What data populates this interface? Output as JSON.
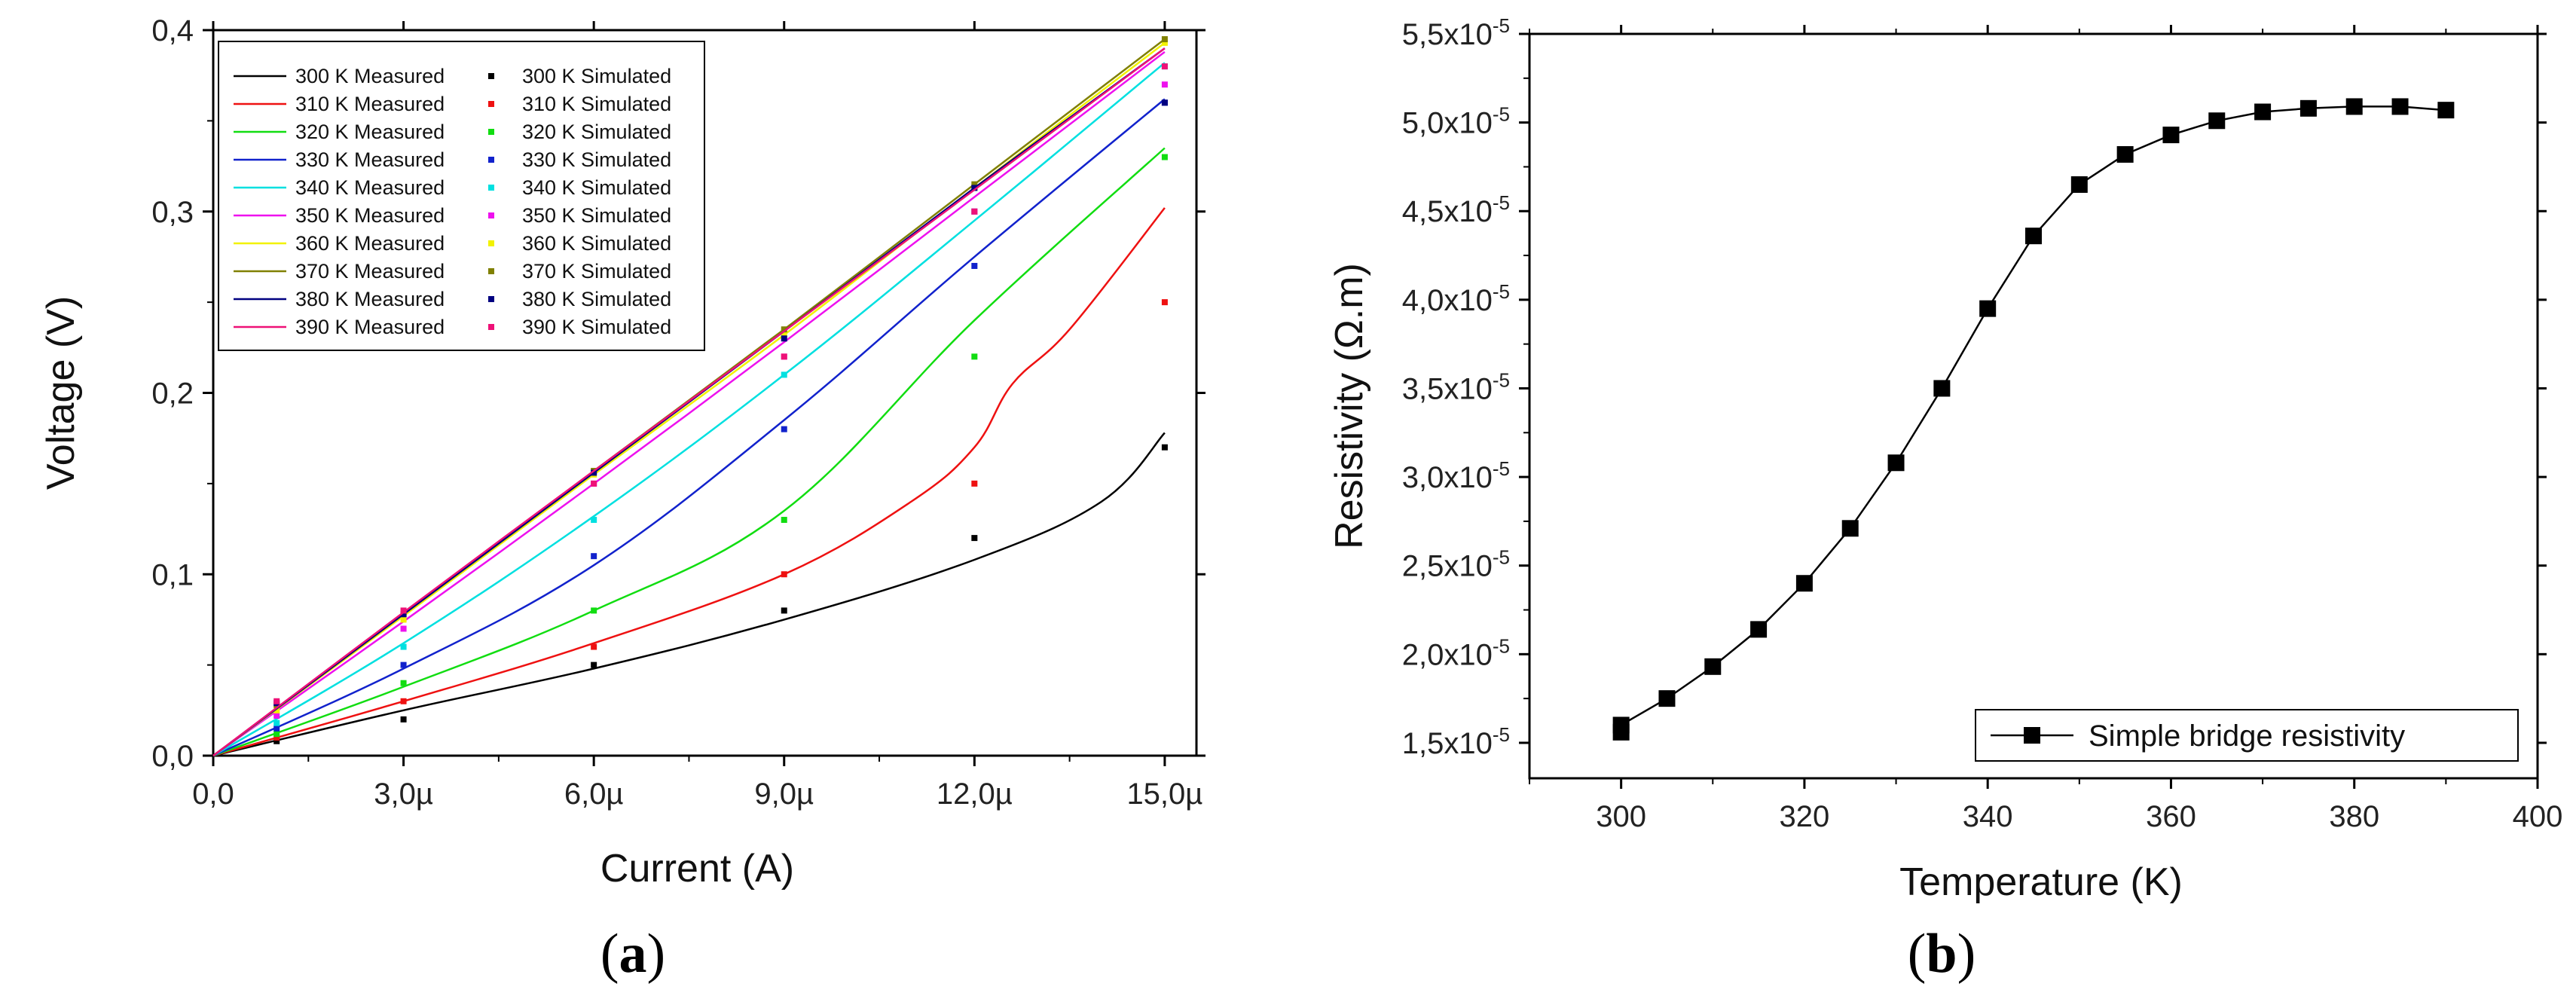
{
  "chart_data": [
    {
      "panel": "a",
      "type": "line",
      "caption": {
        "open": "(",
        "letter": "a",
        "close": ")"
      },
      "xlabel": "Current (A)",
      "ylabel": "Voltage (V)",
      "xlim": [
        0,
        15.5
      ],
      "ylim": [
        0,
        0.4
      ],
      "xticks": [
        0,
        3,
        6,
        9,
        12,
        15
      ],
      "xtick_labels": [
        "0,0",
        "3,0µ",
        "6,0µ",
        "9,0µ",
        "12,0µ",
        "15,0µ"
      ],
      "yticks": [
        0,
        0.1,
        0.2,
        0.3,
        0.4
      ],
      "ytick_labels": [
        "0,0",
        "0,1",
        "0,2",
        "0,3",
        "0,4"
      ],
      "x_unit_note": "µA",
      "series": [
        {
          "name": "300 K",
          "measured_label": "300 K Measured",
          "simulated_label": "300 K Simulated",
          "color": "#000000",
          "measured_x": [
            0,
            3,
            6,
            9,
            12,
            14,
            15
          ],
          "measured_y": [
            0,
            0.025,
            0.048,
            0.075,
            0.108,
            0.14,
            0.178
          ],
          "simulated_x": [
            1,
            3,
            6,
            9,
            12,
            15
          ],
          "simulated_y": [
            0.008,
            0.02,
            0.05,
            0.08,
            0.12,
            0.17
          ]
        },
        {
          "name": "310 K",
          "measured_label": "310 K Measured",
          "simulated_label": "310 K Simulated",
          "color": "#ee1111",
          "measured_x": [
            0,
            3,
            6,
            9,
            11,
            12,
            12.6,
            13.5,
            15
          ],
          "measured_y": [
            0,
            0.03,
            0.062,
            0.1,
            0.14,
            0.17,
            0.205,
            0.235,
            0.302
          ],
          "simulated_x": [
            1,
            3,
            6,
            9,
            12,
            15
          ],
          "simulated_y": [
            0.01,
            0.03,
            0.06,
            0.1,
            0.15,
            0.25
          ]
        },
        {
          "name": "320 K",
          "measured_label": "320 K Measured",
          "simulated_label": "320 K Simulated",
          "color": "#11dd11",
          "measured_x": [
            0,
            3,
            6,
            9,
            12,
            15
          ],
          "measured_y": [
            0,
            0.038,
            0.08,
            0.135,
            0.24,
            0.335
          ],
          "simulated_x": [
            1,
            3,
            6,
            9,
            12,
            15
          ],
          "simulated_y": [
            0.012,
            0.04,
            0.08,
            0.13,
            0.22,
            0.33
          ]
        },
        {
          "name": "330 K",
          "measured_label": "330 K Measured",
          "simulated_label": "330 K Simulated",
          "color": "#1122cc",
          "measured_x": [
            0,
            3,
            6,
            9,
            12,
            15
          ],
          "measured_y": [
            0,
            0.048,
            0.105,
            0.185,
            0.275,
            0.362
          ],
          "simulated_x": [
            1,
            3,
            6,
            9,
            12,
            15
          ],
          "simulated_y": [
            0.015,
            0.05,
            0.11,
            0.18,
            0.27,
            0.36
          ]
        },
        {
          "name": "340 K",
          "measured_label": "340 K Measured",
          "simulated_label": "340 K Simulated",
          "color": "#00e0e0",
          "measured_x": [
            0,
            3,
            6,
            9,
            12,
            15
          ],
          "measured_y": [
            0,
            0.062,
            0.132,
            0.21,
            0.295,
            0.382
          ],
          "simulated_x": [
            1,
            3,
            6,
            9,
            12,
            15
          ],
          "simulated_y": [
            0.018,
            0.06,
            0.13,
            0.21,
            0.3,
            0.38
          ]
        },
        {
          "name": "350 K",
          "measured_label": "350 K Measured",
          "simulated_label": "350 K Simulated",
          "color": "#ee11ee",
          "measured_x": [
            0,
            3,
            6,
            9,
            12,
            15
          ],
          "measured_y": [
            0,
            0.074,
            0.15,
            0.228,
            0.308,
            0.388
          ],
          "simulated_x": [
            1,
            3,
            6,
            9,
            12,
            15
          ],
          "simulated_y": [
            0.022,
            0.07,
            0.15,
            0.22,
            0.3,
            0.37
          ]
        },
        {
          "name": "360 K",
          "measured_label": "360 K Measured",
          "simulated_label": "360 K Simulated",
          "color": "#f2f200",
          "measured_x": [
            0,
            3,
            6,
            9,
            12,
            15
          ],
          "measured_y": [
            0,
            0.077,
            0.155,
            0.232,
            0.313,
            0.393
          ],
          "simulated_x": [
            1,
            3,
            6,
            9,
            12,
            15
          ],
          "simulated_y": [
            0.025,
            0.075,
            0.155,
            0.232,
            0.313,
            0.393
          ]
        },
        {
          "name": "370 K",
          "measured_label": "370 K Measured",
          "simulated_label": "370 K Simulated",
          "color": "#808000",
          "measured_x": [
            0,
            3,
            6,
            9,
            12,
            15
          ],
          "measured_y": [
            0,
            0.078,
            0.157,
            0.235,
            0.315,
            0.395
          ],
          "simulated_x": [
            1,
            3,
            6,
            9,
            12,
            15
          ],
          "simulated_y": [
            0.028,
            0.078,
            0.157,
            0.235,
            0.315,
            0.395
          ]
        },
        {
          "name": "380 K",
          "measured_label": "380 K Measured",
          "simulated_label": "380 K Simulated",
          "color": "#000080",
          "measured_x": [
            0,
            3,
            6,
            9,
            12,
            15
          ],
          "measured_y": [
            0,
            0.078,
            0.156,
            0.234,
            0.313,
            0.39
          ],
          "simulated_x": [
            1,
            3,
            6,
            9,
            12,
            15
          ],
          "simulated_y": [
            0.029,
            0.078,
            0.156,
            0.23,
            0.313,
            0.36
          ]
        },
        {
          "name": "390 K",
          "measured_label": "390 K Measured",
          "simulated_label": "390 K Simulated",
          "color": "#ee1177",
          "measured_x": [
            0,
            3,
            6,
            9,
            12,
            15
          ],
          "measured_y": [
            0,
            0.079,
            0.157,
            0.234,
            0.312,
            0.39
          ],
          "simulated_x": [
            1,
            3,
            6,
            9,
            12,
            15
          ],
          "simulated_y": [
            0.03,
            0.08,
            0.15,
            0.22,
            0.3,
            0.38
          ]
        }
      ]
    },
    {
      "panel": "b",
      "type": "line",
      "caption": {
        "open": "(",
        "letter": "b",
        "close": ")"
      },
      "xlabel": "Temperature (K)",
      "ylabel": "Resistivity (Ω.m)",
      "xlim": [
        290,
        400
      ],
      "ylim": [
        1.3e-05,
        5.5e-05
      ],
      "xticks": [
        300,
        320,
        340,
        360,
        380,
        400
      ],
      "xtick_labels": [
        "300",
        "320",
        "340",
        "360",
        "380",
        "400"
      ],
      "yticks": [
        1.5e-05,
        2e-05,
        2.5e-05,
        3e-05,
        3.5e-05,
        4e-05,
        4.5e-05,
        5e-05,
        5.5e-05
      ],
      "ytick_labels": [
        "1,5x10",
        "2,0x10",
        "2,5x10",
        "3,0x10",
        "3,5x10",
        "4,0x10",
        "4,5x10",
        "5,0x10",
        "5,5x10"
      ],
      "ytick_exponent": "-5",
      "legend": "Simple bridge resistivity",
      "series": [
        {
          "name": "Simple bridge resistivity",
          "marker": "square",
          "color": "#000000",
          "x": [
            300,
            300,
            305,
            310,
            315,
            320,
            325,
            330,
            335,
            340,
            345,
            350,
            355,
            360,
            365,
            370,
            375,
            380,
            385,
            390
          ],
          "y": [
            1.56e-05,
            1.6e-05,
            1.75e-05,
            1.93e-05,
            2.14e-05,
            2.4e-05,
            2.71e-05,
            3.08e-05,
            3.5e-05,
            3.95e-05,
            4.36e-05,
            4.65e-05,
            4.82e-05,
            4.93e-05,
            5.01e-05,
            5.06e-05,
            5.08e-05,
            5.09e-05,
            5.09e-05,
            5.07e-05
          ]
        }
      ]
    }
  ]
}
